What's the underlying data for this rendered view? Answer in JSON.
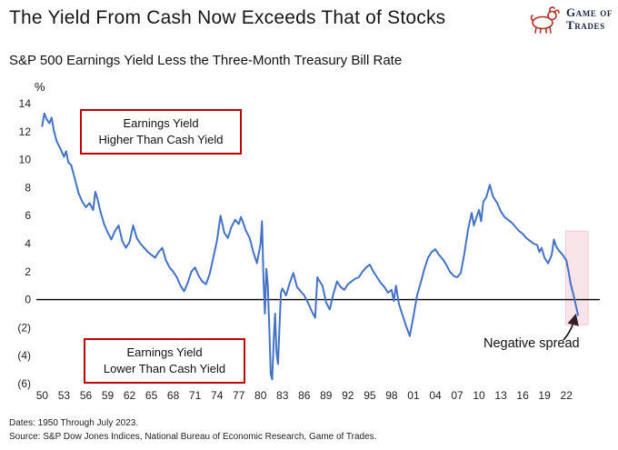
{
  "header": {
    "title": "The Yield From Cash Now Exceeds That of Stocks",
    "logo_line1": "Game of",
    "logo_line2": "Trades"
  },
  "subtitle": "S&P 500 Earnings Yield Less the Three-Month Treasury Bill Rate",
  "annotations": {
    "top_box_line1": "Earnings Yield",
    "top_box_line2": "Higher Than Cash Yield",
    "bottom_box_line1": "Earnings Yield",
    "bottom_box_line2": "Lower Than Cash Yield",
    "negative_spread": "Negative spread"
  },
  "footer": {
    "line1": "Dates: 1950 Through July 2023.",
    "line2": "Source: S&P Dow Jones Indices, National Bureau of Economic Research, Game of Trades."
  },
  "chart_data": {
    "type": "line",
    "title": "S&P 500 Earnings Yield Less the Three-Month Treasury Bill Rate",
    "xlabel": "",
    "ylabel": "%",
    "ylim": [
      -6,
      14
    ],
    "x_range": [
      1949.2,
      2026.6
    ],
    "grid": false,
    "legend": "none",
    "line_color": "#4472c4",
    "zero_line_color": "#000000",
    "highlight_band": {
      "x": [
        2021.9,
        2025.0
      ],
      "y": [
        4.9,
        -1.8
      ],
      "color": "#e06a8c",
      "opacity": 0.18
    },
    "y_ticks": {
      "values": [
        14,
        12,
        10,
        8,
        6,
        4,
        2,
        0,
        -2,
        -4,
        -6
      ],
      "labels": [
        "14",
        "12",
        "10",
        "8",
        "6",
        "4",
        "2",
        "0",
        "(2)",
        "(4)",
        "(6)"
      ]
    },
    "x_ticks": {
      "values": [
        1950,
        1953,
        1956,
        1959,
        1962,
        1965,
        1968,
        1971,
        1974,
        1977,
        1980,
        1983,
        1986,
        1989,
        1992,
        1995,
        1998,
        2001,
        2004,
        2007,
        2010,
        2013,
        2016,
        2019,
        2022
      ],
      "labels": [
        "50",
        "53",
        "56",
        "59",
        "62",
        "65",
        "68",
        "71",
        "74",
        "77",
        "80",
        "83",
        "86",
        "89",
        "92",
        "95",
        "98",
        "01",
        "04",
        "07",
        "10",
        "13",
        "16",
        "19",
        "22"
      ]
    },
    "series": [
      {
        "name": "S&P 500 earnings yield minus 3-month T-bill rate (%)",
        "points": [
          [
            1950.0,
            12.4
          ],
          [
            1950.3,
            13.3
          ],
          [
            1950.6,
            12.9
          ],
          [
            1951.0,
            12.6
          ],
          [
            1951.3,
            13.0
          ],
          [
            1951.6,
            12.1
          ],
          [
            1952.0,
            11.3
          ],
          [
            1952.5,
            10.8
          ],
          [
            1953.0,
            10.2
          ],
          [
            1953.3,
            10.6
          ],
          [
            1953.6,
            9.8
          ],
          [
            1954.0,
            9.6
          ],
          [
            1954.5,
            8.6
          ],
          [
            1955.0,
            7.6
          ],
          [
            1955.5,
            7.0
          ],
          [
            1956.0,
            6.6
          ],
          [
            1956.5,
            6.9
          ],
          [
            1957.0,
            6.4
          ],
          [
            1957.3,
            7.7
          ],
          [
            1957.6,
            7.2
          ],
          [
            1958.0,
            6.3
          ],
          [
            1958.5,
            5.4
          ],
          [
            1959.0,
            4.8
          ],
          [
            1959.5,
            4.3
          ],
          [
            1960.0,
            4.9
          ],
          [
            1960.5,
            5.3
          ],
          [
            1961.0,
            4.2
          ],
          [
            1961.5,
            3.7
          ],
          [
            1962.0,
            4.1
          ],
          [
            1962.5,
            5.3
          ],
          [
            1963.0,
            4.4
          ],
          [
            1963.5,
            4.0
          ],
          [
            1964.0,
            3.7
          ],
          [
            1964.5,
            3.4
          ],
          [
            1965.0,
            3.2
          ],
          [
            1965.5,
            3.0
          ],
          [
            1966.0,
            3.4
          ],
          [
            1966.5,
            3.7
          ],
          [
            1967.0,
            2.8
          ],
          [
            1967.5,
            2.3
          ],
          [
            1968.0,
            2.0
          ],
          [
            1968.5,
            1.6
          ],
          [
            1969.0,
            1.0
          ],
          [
            1969.5,
            0.6
          ],
          [
            1970.0,
            1.2
          ],
          [
            1970.5,
            2.0
          ],
          [
            1971.0,
            2.3
          ],
          [
            1971.5,
            1.7
          ],
          [
            1972.0,
            1.3
          ],
          [
            1972.5,
            1.1
          ],
          [
            1973.0,
            1.8
          ],
          [
            1973.5,
            3.0
          ],
          [
            1974.0,
            4.2
          ],
          [
            1974.5,
            6.0
          ],
          [
            1975.0,
            4.8
          ],
          [
            1975.5,
            4.4
          ],
          [
            1976.0,
            5.2
          ],
          [
            1976.5,
            5.7
          ],
          [
            1977.0,
            5.4
          ],
          [
            1977.3,
            5.9
          ],
          [
            1977.6,
            5.5
          ],
          [
            1978.0,
            4.9
          ],
          [
            1978.5,
            4.4
          ],
          [
            1979.0,
            3.4
          ],
          [
            1979.5,
            2.6
          ],
          [
            1980.0,
            4.0
          ],
          [
            1980.2,
            5.6
          ],
          [
            1980.4,
            1.5
          ],
          [
            1980.6,
            -1.0
          ],
          [
            1980.8,
            2.2
          ],
          [
            1981.0,
            1.0
          ],
          [
            1981.2,
            -2.0
          ],
          [
            1981.4,
            -5.3
          ],
          [
            1981.6,
            -5.7
          ],
          [
            1981.8,
            -3.0
          ],
          [
            1982.0,
            -1.0
          ],
          [
            1982.2,
            -3.8
          ],
          [
            1982.4,
            -4.6
          ],
          [
            1982.6,
            -2.0
          ],
          [
            1982.8,
            0.5
          ],
          [
            1983.0,
            0.8
          ],
          [
            1983.5,
            0.3
          ],
          [
            1984.0,
            1.2
          ],
          [
            1984.5,
            1.9
          ],
          [
            1985.0,
            0.9
          ],
          [
            1985.5,
            0.6
          ],
          [
            1986.0,
            0.3
          ],
          [
            1986.5,
            -0.2
          ],
          [
            1987.0,
            -0.8
          ],
          [
            1987.5,
            -1.3
          ],
          [
            1987.8,
            1.6
          ],
          [
            1988.0,
            1.4
          ],
          [
            1988.5,
            1.0
          ],
          [
            1989.0,
            -0.2
          ],
          [
            1989.5,
            -0.7
          ],
          [
            1990.0,
            0.4
          ],
          [
            1990.5,
            1.3
          ],
          [
            1991.0,
            0.9
          ],
          [
            1991.5,
            0.7
          ],
          [
            1992.0,
            1.1
          ],
          [
            1992.5,
            1.3
          ],
          [
            1993.0,
            1.5
          ],
          [
            1993.5,
            1.6
          ],
          [
            1994.0,
            2.0
          ],
          [
            1994.5,
            2.3
          ],
          [
            1995.0,
            2.5
          ],
          [
            1995.5,
            2.0
          ],
          [
            1996.0,
            1.6
          ],
          [
            1996.5,
            1.2
          ],
          [
            1997.0,
            0.9
          ],
          [
            1997.5,
            0.5
          ],
          [
            1998.0,
            0.7
          ],
          [
            1998.3,
            -0.1
          ],
          [
            1998.6,
            1.0
          ],
          [
            1999.0,
            -0.3
          ],
          [
            1999.5,
            -1.1
          ],
          [
            2000.0,
            -1.9
          ],
          [
            2000.5,
            -2.6
          ],
          [
            2001.0,
            -1.2
          ],
          [
            2001.5,
            0.3
          ],
          [
            2002.0,
            1.2
          ],
          [
            2002.5,
            2.2
          ],
          [
            2003.0,
            3.0
          ],
          [
            2003.5,
            3.4
          ],
          [
            2004.0,
            3.6
          ],
          [
            2004.5,
            3.2
          ],
          [
            2005.0,
            2.9
          ],
          [
            2005.5,
            2.5
          ],
          [
            2006.0,
            2.0
          ],
          [
            2006.5,
            1.7
          ],
          [
            2007.0,
            1.6
          ],
          [
            2007.5,
            1.9
          ],
          [
            2008.0,
            3.3
          ],
          [
            2008.5,
            5.0
          ],
          [
            2009.0,
            6.2
          ],
          [
            2009.3,
            5.3
          ],
          [
            2009.6,
            5.8
          ],
          [
            2010.0,
            6.4
          ],
          [
            2010.3,
            5.6
          ],
          [
            2010.6,
            7.0
          ],
          [
            2011.0,
            7.3
          ],
          [
            2011.5,
            8.2
          ],
          [
            2011.8,
            7.6
          ],
          [
            2012.0,
            7.3
          ],
          [
            2012.5,
            6.9
          ],
          [
            2013.0,
            6.3
          ],
          [
            2013.5,
            5.9
          ],
          [
            2014.0,
            5.7
          ],
          [
            2014.5,
            5.5
          ],
          [
            2015.0,
            5.2
          ],
          [
            2015.5,
            4.9
          ],
          [
            2016.0,
            4.7
          ],
          [
            2016.5,
            4.4
          ],
          [
            2017.0,
            4.2
          ],
          [
            2017.5,
            4.0
          ],
          [
            2018.0,
            3.9
          ],
          [
            2018.3,
            3.4
          ],
          [
            2018.6,
            3.7
          ],
          [
            2019.0,
            3.0
          ],
          [
            2019.5,
            2.6
          ],
          [
            2020.0,
            3.2
          ],
          [
            2020.3,
            4.3
          ],
          [
            2020.6,
            3.8
          ],
          [
            2021.0,
            3.5
          ],
          [
            2021.5,
            3.2
          ],
          [
            2022.0,
            2.8
          ],
          [
            2022.3,
            2.0
          ],
          [
            2022.6,
            1.1
          ],
          [
            2023.0,
            0.3
          ],
          [
            2023.3,
            -0.4
          ],
          [
            2023.6,
            -1.1
          ]
        ]
      }
    ]
  }
}
